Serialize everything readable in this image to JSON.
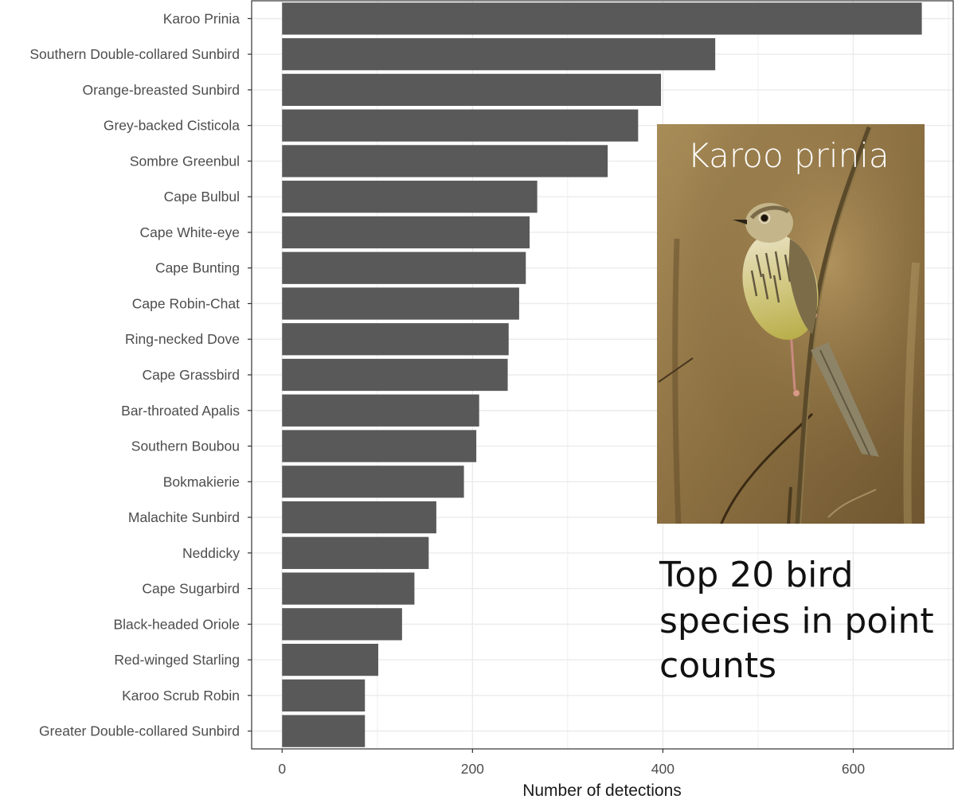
{
  "chart_data": {
    "type": "bar",
    "orientation": "horizontal",
    "categories": [
      "Karoo Prinia",
      "Southern Double-collared Sunbird",
      "Orange-breasted Sunbird",
      "Grey-backed Cisticola",
      "Sombre Greenbul",
      "Cape Bulbul",
      "Cape White-eye",
      "Cape Bunting",
      "Cape Robin-Chat",
      "Ring-necked Dove",
      "Cape Grassbird",
      "Bar-throated Apalis",
      "Southern Boubou",
      "Bokmakierie",
      "Malachite Sunbird",
      "Neddicky",
      "Cape Sugarbird",
      "Black-headed Oriole",
      "Red-winged Starling",
      "Karoo Scrub Robin",
      "Greater Double-collared Sunbird"
    ],
    "values": [
      672,
      455,
      398,
      374,
      342,
      268,
      260,
      256,
      249,
      238,
      237,
      207,
      204,
      191,
      162,
      154,
      139,
      126,
      101,
      87,
      87
    ],
    "title": "",
    "xlabel": "Number of detections",
    "ylabel": "",
    "xlim": [
      -32,
      705
    ],
    "xticks": [
      0,
      200,
      400,
      600
    ],
    "xtick_labels": [
      "0",
      "200",
      "400",
      "600"
    ],
    "grid": true,
    "bar_color": "#595959",
    "panel_border_color": "#333333",
    "grid_color": "#ebebeb",
    "legend": "none"
  },
  "inset": {
    "caption": "Karoo prinia",
    "photo_subject": "Karoo Prinia bird perched on a dry reed stem",
    "background_color": "#9a8050"
  },
  "annotation": {
    "lines": [
      "Top 20 bird",
      "species in point",
      "counts"
    ]
  }
}
